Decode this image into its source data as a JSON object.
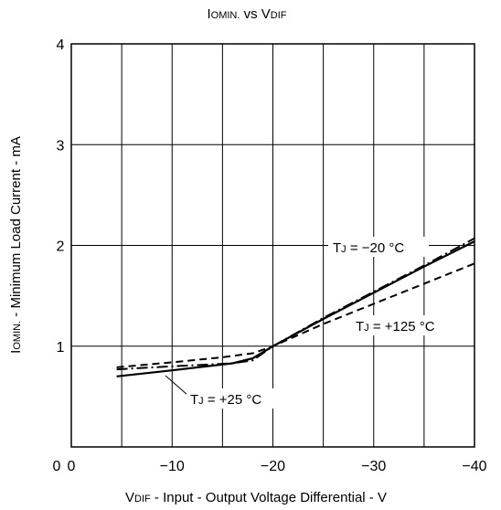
{
  "chart_data": {
    "type": "line",
    "title": {
      "main": "I",
      "sub": "OMIN.",
      "mid": " vs V",
      "sub2": "DIF"
    },
    "xlabel": {
      "main": "V",
      "sub": "DIF",
      "rest": " - Input - Output Voltage Differential - V"
    },
    "ylabel": {
      "main": "I",
      "sub": "OMIN.",
      "rest": " - Minimum Load Current - mA"
    },
    "xlim": [
      0,
      -40
    ],
    "ylim": [
      0,
      4
    ],
    "x_ticks": [
      0,
      -5,
      -10,
      -15,
      -20,
      -25,
      -30,
      -35,
      -40
    ],
    "x_tick_labels": [
      "0",
      "",
      "−10",
      "",
      "−20",
      "",
      "−30",
      "",
      "−40"
    ],
    "y_ticks": [
      0,
      1,
      2,
      3,
      4
    ],
    "y_tick_labels": [
      "",
      "1",
      "2",
      "3",
      "4"
    ],
    "origin_label": "0",
    "grid": true,
    "series": [
      {
        "name": "TJ = +25 °C",
        "style": "solid",
        "x": [
          -4.5,
          -10,
          -16,
          -18,
          -20,
          -25,
          -30,
          -35,
          -40
        ],
        "y": [
          0.7,
          0.76,
          0.83,
          0.88,
          1.0,
          1.27,
          1.53,
          1.79,
          2.04
        ]
      },
      {
        "name": "TJ = −20 °C",
        "style": "dashdot",
        "x": [
          -4.5,
          -10,
          -16,
          -18,
          -20,
          -25,
          -30,
          -35,
          -40
        ],
        "y": [
          0.77,
          0.8,
          0.83,
          0.86,
          1.0,
          1.28,
          1.54,
          1.8,
          2.07
        ]
      },
      {
        "name": "TJ = +125 °C",
        "style": "dashed",
        "x": [
          -4.5,
          -10,
          -15,
          -18,
          -20,
          -25,
          -30,
          -35,
          -40
        ],
        "y": [
          0.79,
          0.84,
          0.89,
          0.93,
          1.0,
          1.22,
          1.42,
          1.62,
          1.82
        ]
      }
    ],
    "annotations": [
      {
        "main": "T",
        "sub": "J",
        "rest": " = −20 °C"
      },
      {
        "main": "T",
        "sub": "J",
        "rest": " = +125 °C"
      },
      {
        "main": "T",
        "sub": "J",
        "rest": " = +25 °C"
      }
    ]
  }
}
